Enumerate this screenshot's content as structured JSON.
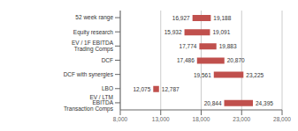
{
  "chart_data": {
    "type": "bar",
    "orientation": "horizontal",
    "categories": [
      "52 week range",
      "Equity research",
      "EV / 1F EBITDA Trading Comps",
      "DCF",
      "DCF with synergies",
      "LBO",
      "EV / LTM EBITDA Transaction Comps"
    ],
    "values": [
      [
        16927,
        19188
      ],
      [
        15932,
        19091
      ],
      [
        17774,
        19883
      ],
      [
        17486,
        20870
      ],
      [
        19561,
        23225
      ],
      [
        12075,
        12787
      ],
      [
        20844,
        24395
      ]
    ],
    "value_labels": [
      [
        "16,927",
        "19,188"
      ],
      [
        "15,932",
        "19,091"
      ],
      [
        "17,774",
        "19,883"
      ],
      [
        "17,486",
        "20,870"
      ],
      [
        "19,561",
        "23,225"
      ],
      [
        "12,075",
        "12,787"
      ],
      [
        "20,844",
        "24,395"
      ]
    ],
    "data_labels": true,
    "color": "#c0504d",
    "xlim": [
      8000,
      28000
    ],
    "xticks": [
      {
        "value": 8000,
        "label": "8,000"
      },
      {
        "value": 13000,
        "label": "13,000"
      },
      {
        "value": 18000,
        "label": "18,000"
      },
      {
        "value": 23000,
        "label": "23,000"
      },
      {
        "value": 28000,
        "label": "28,000"
      }
    ],
    "grid": true
  }
}
